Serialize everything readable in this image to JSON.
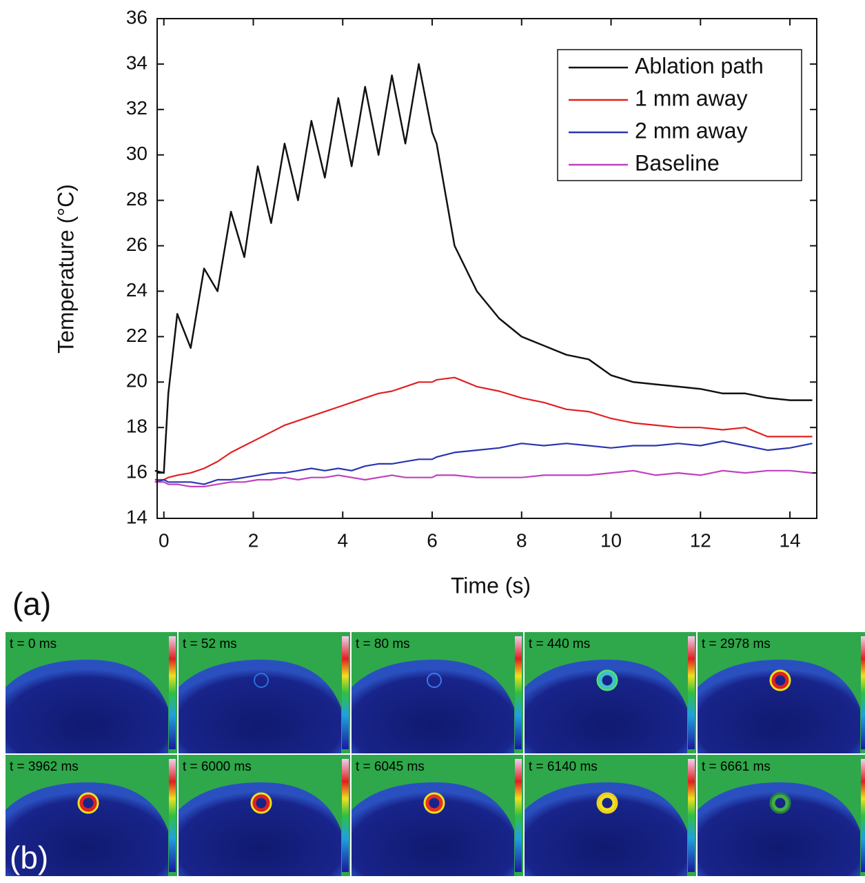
{
  "chart_data": {
    "type": "line",
    "xlabel": "Time (s)",
    "ylabel": "Temperature (°C)",
    "x": [
      -0.2,
      0,
      0.1,
      0.3,
      0.6,
      0.9,
      1.2,
      1.5,
      1.8,
      2.1,
      2.4,
      2.7,
      3.0,
      3.3,
      3.6,
      3.9,
      4.2,
      4.5,
      4.8,
      5.1,
      5.4,
      5.7,
      6.0,
      6.1,
      6.5,
      7,
      7.5,
      8,
      8.5,
      9,
      9.5,
      10,
      10.5,
      11,
      11.5,
      12,
      12.5,
      13,
      13.5,
      14,
      14.5
    ],
    "series": [
      {
        "name": "Ablation path",
        "color": "#111111",
        "values": [
          16.1,
          16,
          19.5,
          23,
          21.5,
          25,
          24,
          27.5,
          25.5,
          29.5,
          27,
          30.5,
          28,
          31.5,
          29,
          32.5,
          29.5,
          33,
          30,
          33.5,
          30.5,
          34,
          31,
          30.5,
          26,
          24,
          22.8,
          22,
          21.6,
          21.2,
          21,
          20.3,
          20,
          19.9,
          19.8,
          19.7,
          19.5,
          19.5,
          19.3,
          19.2,
          19.2
        ]
      },
      {
        "name": "1 mm away",
        "color": "#e02020",
        "values": [
          15.7,
          15.7,
          15.8,
          15.9,
          16,
          16.2,
          16.5,
          16.9,
          17.2,
          17.5,
          17.8,
          18.1,
          18.3,
          18.5,
          18.7,
          18.9,
          19.1,
          19.3,
          19.5,
          19.6,
          19.8,
          20,
          20,
          20.1,
          20.2,
          19.8,
          19.6,
          19.3,
          19.1,
          18.8,
          18.7,
          18.4,
          18.2,
          18.1,
          18,
          18,
          17.9,
          18,
          17.6,
          17.6,
          17.6
        ]
      },
      {
        "name": "2 mm away",
        "color": "#2a35b0",
        "values": [
          15.6,
          15.7,
          15.6,
          15.6,
          15.6,
          15.5,
          15.7,
          15.7,
          15.8,
          15.9,
          16,
          16,
          16.1,
          16.2,
          16.1,
          16.2,
          16.1,
          16.3,
          16.4,
          16.4,
          16.5,
          16.6,
          16.6,
          16.7,
          16.9,
          17,
          17.1,
          17.3,
          17.2,
          17.3,
          17.2,
          17.1,
          17.2,
          17.2,
          17.3,
          17.2,
          17.4,
          17.2,
          17,
          17.1,
          17.3
        ]
      },
      {
        "name": "Baseline",
        "color": "#c040c0",
        "values": [
          15.6,
          15.6,
          15.5,
          15.5,
          15.4,
          15.4,
          15.5,
          15.6,
          15.6,
          15.7,
          15.7,
          15.8,
          15.7,
          15.8,
          15.8,
          15.9,
          15.8,
          15.7,
          15.8,
          15.9,
          15.8,
          15.8,
          15.8,
          15.9,
          15.9,
          15.8,
          15.8,
          15.8,
          15.9,
          15.9,
          15.9,
          16,
          16.1,
          15.9,
          16,
          15.9,
          16.1,
          16,
          16.1,
          16.1,
          16
        ]
      }
    ],
    "xlim": [
      -0.15,
      14.6
    ],
    "ylim": [
      14,
      36
    ],
    "xticks": [
      0,
      2,
      4,
      6,
      8,
      10,
      12,
      14
    ],
    "yticks": [
      14,
      16,
      18,
      20,
      22,
      24,
      26,
      28,
      30,
      32,
      34,
      36
    ],
    "legend": "upper right",
    "panel_a": "(a)",
    "panel_b": "(b)",
    "frames": [
      "t = 0 ms",
      "t = 52 ms",
      "t = 80 ms",
      "t = 440 ms",
      "t = 2978 ms",
      "t = 3962 ms",
      "t = 6000 ms",
      "t = 6045 ms",
      "t = 6140 ms",
      "t = 6661 ms"
    ]
  }
}
